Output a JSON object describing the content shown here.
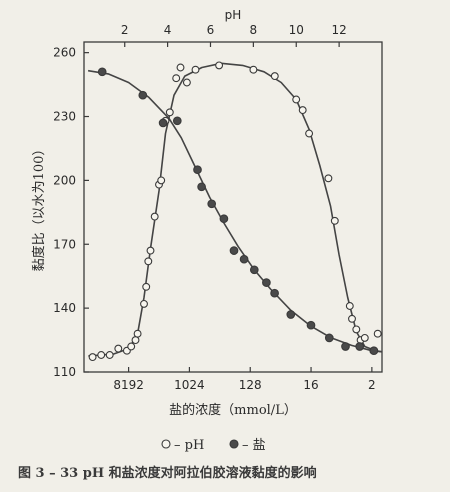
{
  "chart_data": {
    "type": "scatter",
    "caption": "图 3 – 33   pH 和盐浓度对阿拉伯胶溶液黏度的影响",
    "top_axis_title": "pH",
    "xlabel": "盐的浓度（mmol/L）",
    "ylabel": "黏度比（以水为100）",
    "y_ticks": [
      "110",
      "140",
      "170",
      "200",
      "230",
      "260"
    ],
    "ylim": [
      110,
      265
    ],
    "top_ticks": [
      {
        "label": "2",
        "value": 2
      },
      {
        "label": "4",
        "value": 4
      },
      {
        "label": "6",
        "value": 6
      },
      {
        "label": "8",
        "value": 8
      },
      {
        "label": "10",
        "value": 10
      },
      {
        "label": "12",
        "value": 12
      }
    ],
    "top_range": [
      0.1,
      14.0
    ],
    "bottom_ticks": [
      {
        "label": "8192",
        "value": 8192
      },
      {
        "label": "1024",
        "value": 1024
      },
      {
        "label": "128",
        "value": 128
      },
      {
        "label": "16",
        "value": 16
      },
      {
        "label": "2",
        "value": 2
      }
    ],
    "bottom_log2_range": [
      15.2,
      0.5
    ],
    "legend": [
      {
        "marker": "open",
        "label": "– pH"
      },
      {
        "marker": "filled",
        "label": "– 盐"
      }
    ],
    "series": [
      {
        "marker": "open",
        "axis": "top",
        "points": [
          [
            0.5,
            117
          ],
          [
            0.9,
            118
          ],
          [
            1.3,
            118
          ],
          [
            1.7,
            121
          ],
          [
            2.1,
            120
          ],
          [
            2.3,
            122
          ],
          [
            2.5,
            125
          ],
          [
            2.6,
            128
          ],
          [
            2.9,
            142
          ],
          [
            3.0,
            150
          ],
          [
            3.1,
            162
          ],
          [
            3.2,
            167
          ],
          [
            3.4,
            183
          ],
          [
            3.6,
            198
          ],
          [
            3.7,
            200
          ],
          [
            3.9,
            228
          ],
          [
            4.1,
            232
          ],
          [
            4.4,
            248
          ],
          [
            4.6,
            253
          ],
          [
            4.9,
            246
          ],
          [
            5.3,
            252
          ],
          [
            6.4,
            254
          ],
          [
            8.0,
            252
          ],
          [
            9.0,
            249
          ],
          [
            10.0,
            238
          ],
          [
            10.3,
            233
          ],
          [
            10.6,
            222
          ],
          [
            11.5,
            201
          ],
          [
            11.8,
            181
          ],
          [
            12.5,
            141
          ],
          [
            12.6,
            135
          ],
          [
            12.8,
            130
          ],
          [
            13.0,
            125
          ],
          [
            13.2,
            126
          ],
          [
            13.6,
            120
          ],
          [
            13.8,
            128
          ]
        ]
      },
      {
        "marker": "filled",
        "axis": "bottom",
        "points": [
          [
            14.3,
            251
          ],
          [
            12.3,
            240
          ],
          [
            11.3,
            227
          ],
          [
            10.6,
            228
          ],
          [
            9.6,
            205
          ],
          [
            9.4,
            197
          ],
          [
            8.9,
            189
          ],
          [
            8.3,
            182
          ],
          [
            7.8,
            167
          ],
          [
            7.3,
            163
          ],
          [
            6.8,
            158
          ],
          [
            6.2,
            152
          ],
          [
            5.8,
            147
          ],
          [
            5.0,
            137
          ],
          [
            4.0,
            132
          ],
          [
            3.1,
            126
          ],
          [
            2.3,
            122
          ],
          [
            1.6,
            122
          ],
          [
            0.9,
            120
          ]
        ]
      }
    ],
    "curves": [
      {
        "axis": "top",
        "points": [
          [
            0.3,
            117.5
          ],
          [
            1.5,
            118.5
          ],
          [
            2.2,
            121
          ],
          [
            2.6,
            128
          ],
          [
            2.9,
            145
          ],
          [
            3.2,
            168
          ],
          [
            3.6,
            195
          ],
          [
            3.9,
            222
          ],
          [
            4.3,
            240
          ],
          [
            4.8,
            249
          ],
          [
            5.6,
            253
          ],
          [
            6.5,
            255
          ],
          [
            7.5,
            254
          ],
          [
            8.5,
            251
          ],
          [
            9.3,
            246
          ],
          [
            10.0,
            238
          ],
          [
            10.6,
            224
          ],
          [
            11.1,
            207
          ],
          [
            11.6,
            188
          ],
          [
            12.0,
            165
          ],
          [
            12.4,
            145
          ],
          [
            12.8,
            129
          ],
          [
            13.2,
            122
          ],
          [
            13.7,
            120
          ],
          [
            14.0,
            119.5
          ]
        ]
      },
      {
        "axis": "bottom",
        "points": [
          [
            15.0,
            251.5
          ],
          [
            14.0,
            250
          ],
          [
            13.0,
            246
          ],
          [
            12.0,
            239
          ],
          [
            11.0,
            229
          ],
          [
            10.4,
            220
          ],
          [
            9.8,
            208
          ],
          [
            9.0,
            192
          ],
          [
            8.3,
            180
          ],
          [
            7.6,
            169
          ],
          [
            6.8,
            158
          ],
          [
            6.0,
            149
          ],
          [
            5.0,
            139
          ],
          [
            4.0,
            131.5
          ],
          [
            3.0,
            126
          ],
          [
            2.0,
            122.5
          ],
          [
            1.0,
            120
          ],
          [
            0.5,
            119.5
          ]
        ]
      }
    ]
  }
}
